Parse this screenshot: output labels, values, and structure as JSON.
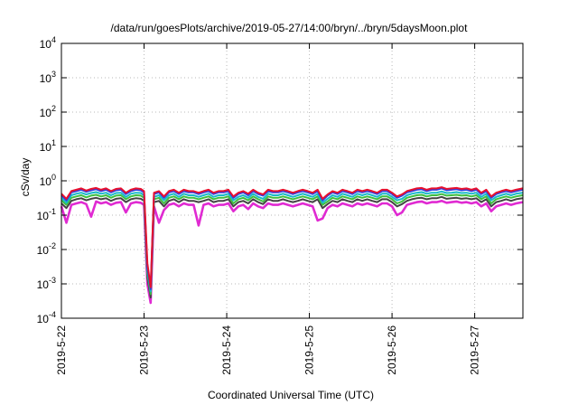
{
  "chart_data": {
    "type": "line",
    "title": "/data/run/goesPlots/archive/2019-05-27/14:00/bryn/../bryn/5daysMoon.plot",
    "xlabel": "Coordinated Universal Time (UTC)",
    "ylabel": "cSv/day",
    "yscale": "log",
    "ylim": [
      0.0001,
      10000
    ],
    "xlim": [
      "2019-05-22",
      "2019-05-27T14:00"
    ],
    "x_ticks": [
      "2019-5-22",
      "2019-5-23",
      "2019-5-24",
      "2019-5-25",
      "2019-5-26",
      "2019-5-27"
    ],
    "y_ticks": [
      {
        "base": "10",
        "exp": "-4"
      },
      {
        "base": "10",
        "exp": "-3"
      },
      {
        "base": "10",
        "exp": "-2"
      },
      {
        "base": "10",
        "exp": "-1"
      },
      {
        "base": "10",
        "exp": "0"
      },
      {
        "base": "10",
        "exp": "1"
      },
      {
        "base": "10",
        "exp": "2"
      },
      {
        "base": "10",
        "exp": "3"
      },
      {
        "base": "10",
        "exp": "4"
      }
    ],
    "grid": true,
    "x_days": [
      0,
      0.06,
      0.12,
      0.18,
      0.24,
      0.3,
      0.36,
      0.42,
      0.48,
      0.54,
      0.6,
      0.66,
      0.72,
      0.78,
      0.84,
      0.9,
      0.96,
      1.0,
      1.04,
      1.08,
      1.12,
      1.18,
      1.24,
      1.3,
      1.36,
      1.42,
      1.48,
      1.54,
      1.6,
      1.66,
      1.72,
      1.78,
      1.84,
      1.9,
      1.96,
      2.02,
      2.08,
      2.14,
      2.2,
      2.26,
      2.32,
      2.38,
      2.44,
      2.5,
      2.56,
      2.62,
      2.68,
      2.74,
      2.8,
      2.86,
      2.92,
      2.98,
      3.04,
      3.1,
      3.16,
      3.22,
      3.28,
      3.34,
      3.4,
      3.46,
      3.52,
      3.58,
      3.64,
      3.7,
      3.76,
      3.82,
      3.88,
      3.94,
      4.0,
      4.06,
      4.12,
      4.18,
      4.24,
      4.3,
      4.36,
      4.42,
      4.48,
      4.54,
      4.6,
      4.66,
      4.72,
      4.78,
      4.84,
      4.9,
      4.96,
      5.02,
      5.08,
      5.14,
      5.2,
      5.26,
      5.32,
      5.38,
      5.44,
      5.5,
      5.58
    ],
    "series": [
      {
        "color": "#e8102e",
        "values": [
          0.42,
          0.3,
          0.5,
          0.55,
          0.6,
          0.52,
          0.58,
          0.62,
          0.55,
          0.6,
          0.5,
          0.58,
          0.6,
          0.45,
          0.55,
          0.6,
          0.58,
          0.5,
          0.004,
          0.0008,
          0.45,
          0.5,
          0.35,
          0.5,
          0.55,
          0.45,
          0.55,
          0.5,
          0.5,
          0.45,
          0.5,
          0.55,
          0.45,
          0.5,
          0.5,
          0.55,
          0.35,
          0.45,
          0.5,
          0.42,
          0.55,
          0.45,
          0.4,
          0.55,
          0.5,
          0.5,
          0.55,
          0.5,
          0.45,
          0.5,
          0.55,
          0.5,
          0.45,
          0.55,
          0.3,
          0.4,
          0.5,
          0.45,
          0.55,
          0.5,
          0.45,
          0.55,
          0.5,
          0.55,
          0.5,
          0.45,
          0.55,
          0.55,
          0.45,
          0.35,
          0.4,
          0.5,
          0.55,
          0.6,
          0.62,
          0.55,
          0.6,
          0.6,
          0.65,
          0.58,
          0.6,
          0.62,
          0.58,
          0.6,
          0.55,
          0.6,
          0.45,
          0.55,
          0.35,
          0.45,
          0.5,
          0.55,
          0.5,
          0.55,
          0.6
        ]
      },
      {
        "color": "#2c3fe0",
        "values": [
          0.38,
          0.27,
          0.46,
          0.5,
          0.55,
          0.48,
          0.53,
          0.57,
          0.5,
          0.55,
          0.46,
          0.53,
          0.55,
          0.41,
          0.5,
          0.55,
          0.53,
          0.46,
          0.003,
          0.0007,
          0.41,
          0.46,
          0.32,
          0.46,
          0.5,
          0.41,
          0.5,
          0.46,
          0.46,
          0.41,
          0.46,
          0.5,
          0.41,
          0.46,
          0.46,
          0.5,
          0.32,
          0.41,
          0.46,
          0.38,
          0.5,
          0.41,
          0.37,
          0.5,
          0.46,
          0.46,
          0.5,
          0.46,
          0.41,
          0.46,
          0.5,
          0.46,
          0.41,
          0.5,
          0.27,
          0.37,
          0.46,
          0.41,
          0.5,
          0.46,
          0.41,
          0.5,
          0.46,
          0.5,
          0.46,
          0.41,
          0.5,
          0.5,
          0.41,
          0.32,
          0.37,
          0.46,
          0.5,
          0.55,
          0.57,
          0.5,
          0.55,
          0.55,
          0.6,
          0.53,
          0.55,
          0.57,
          0.53,
          0.55,
          0.5,
          0.55,
          0.41,
          0.5,
          0.32,
          0.41,
          0.46,
          0.5,
          0.46,
          0.5,
          0.55
        ]
      },
      {
        "color": "#19b8c8",
        "values": [
          0.32,
          0.23,
          0.38,
          0.42,
          0.45,
          0.4,
          0.44,
          0.47,
          0.42,
          0.45,
          0.38,
          0.44,
          0.45,
          0.34,
          0.42,
          0.45,
          0.44,
          0.38,
          0.0025,
          0.0006,
          0.34,
          0.38,
          0.27,
          0.38,
          0.42,
          0.34,
          0.42,
          0.38,
          0.38,
          0.34,
          0.38,
          0.42,
          0.34,
          0.38,
          0.38,
          0.42,
          0.27,
          0.34,
          0.38,
          0.32,
          0.42,
          0.34,
          0.3,
          0.42,
          0.38,
          0.38,
          0.42,
          0.38,
          0.34,
          0.38,
          0.42,
          0.38,
          0.34,
          0.42,
          0.23,
          0.3,
          0.38,
          0.34,
          0.42,
          0.38,
          0.34,
          0.42,
          0.38,
          0.42,
          0.38,
          0.34,
          0.42,
          0.42,
          0.34,
          0.27,
          0.3,
          0.38,
          0.42,
          0.45,
          0.47,
          0.42,
          0.45,
          0.45,
          0.49,
          0.44,
          0.45,
          0.47,
          0.44,
          0.45,
          0.42,
          0.45,
          0.34,
          0.42,
          0.27,
          0.34,
          0.38,
          0.42,
          0.38,
          0.42,
          0.45
        ]
      },
      {
        "color": "#3fbf3f",
        "values": [
          0.27,
          0.2,
          0.32,
          0.35,
          0.38,
          0.33,
          0.37,
          0.39,
          0.35,
          0.38,
          0.32,
          0.37,
          0.38,
          0.29,
          0.35,
          0.38,
          0.37,
          0.32,
          0.002,
          0.0005,
          0.29,
          0.32,
          0.22,
          0.32,
          0.35,
          0.29,
          0.35,
          0.32,
          0.32,
          0.29,
          0.32,
          0.35,
          0.29,
          0.32,
          0.32,
          0.35,
          0.22,
          0.29,
          0.32,
          0.27,
          0.35,
          0.29,
          0.25,
          0.35,
          0.32,
          0.32,
          0.35,
          0.32,
          0.29,
          0.32,
          0.35,
          0.32,
          0.29,
          0.35,
          0.2,
          0.25,
          0.32,
          0.29,
          0.35,
          0.32,
          0.29,
          0.35,
          0.32,
          0.35,
          0.32,
          0.29,
          0.35,
          0.35,
          0.29,
          0.22,
          0.25,
          0.32,
          0.35,
          0.38,
          0.39,
          0.35,
          0.38,
          0.38,
          0.41,
          0.37,
          0.38,
          0.39,
          0.37,
          0.38,
          0.35,
          0.38,
          0.29,
          0.35,
          0.22,
          0.29,
          0.32,
          0.35,
          0.32,
          0.35,
          0.38
        ]
      },
      {
        "color": "#444444",
        "values": [
          0.22,
          0.16,
          0.26,
          0.29,
          0.31,
          0.27,
          0.3,
          0.32,
          0.29,
          0.31,
          0.26,
          0.3,
          0.31,
          0.24,
          0.29,
          0.31,
          0.3,
          0.26,
          0.0015,
          0.0004,
          0.24,
          0.26,
          0.18,
          0.26,
          0.29,
          0.24,
          0.29,
          0.26,
          0.26,
          0.24,
          0.26,
          0.29,
          0.24,
          0.26,
          0.26,
          0.29,
          0.18,
          0.24,
          0.26,
          0.22,
          0.29,
          0.24,
          0.21,
          0.29,
          0.26,
          0.26,
          0.29,
          0.26,
          0.24,
          0.26,
          0.29,
          0.26,
          0.24,
          0.29,
          0.16,
          0.21,
          0.26,
          0.24,
          0.29,
          0.26,
          0.24,
          0.29,
          0.26,
          0.29,
          0.26,
          0.24,
          0.29,
          0.29,
          0.24,
          0.18,
          0.21,
          0.26,
          0.29,
          0.31,
          0.32,
          0.29,
          0.31,
          0.31,
          0.34,
          0.3,
          0.31,
          0.32,
          0.3,
          0.31,
          0.29,
          0.31,
          0.24,
          0.29,
          0.18,
          0.24,
          0.26,
          0.29,
          0.26,
          0.29,
          0.31
        ]
      },
      {
        "color": "#e02ad2",
        "values": [
          0.18,
          0.06,
          0.2,
          0.22,
          0.24,
          0.21,
          0.09,
          0.25,
          0.22,
          0.24,
          0.2,
          0.23,
          0.24,
          0.12,
          0.22,
          0.24,
          0.23,
          0.2,
          0.001,
          0.00028,
          0.18,
          0.06,
          0.14,
          0.2,
          0.22,
          0.18,
          0.22,
          0.2,
          0.2,
          0.05,
          0.2,
          0.22,
          0.18,
          0.2,
          0.2,
          0.22,
          0.13,
          0.18,
          0.2,
          0.15,
          0.22,
          0.18,
          0.16,
          0.22,
          0.2,
          0.2,
          0.22,
          0.2,
          0.18,
          0.2,
          0.22,
          0.2,
          0.18,
          0.07,
          0.08,
          0.16,
          0.2,
          0.18,
          0.22,
          0.2,
          0.18,
          0.22,
          0.2,
          0.22,
          0.2,
          0.18,
          0.22,
          0.22,
          0.18,
          0.1,
          0.12,
          0.2,
          0.22,
          0.24,
          0.25,
          0.22,
          0.24,
          0.24,
          0.26,
          0.23,
          0.24,
          0.25,
          0.23,
          0.24,
          0.22,
          0.24,
          0.18,
          0.22,
          0.13,
          0.18,
          0.2,
          0.22,
          0.2,
          0.22,
          0.24
        ]
      }
    ]
  }
}
